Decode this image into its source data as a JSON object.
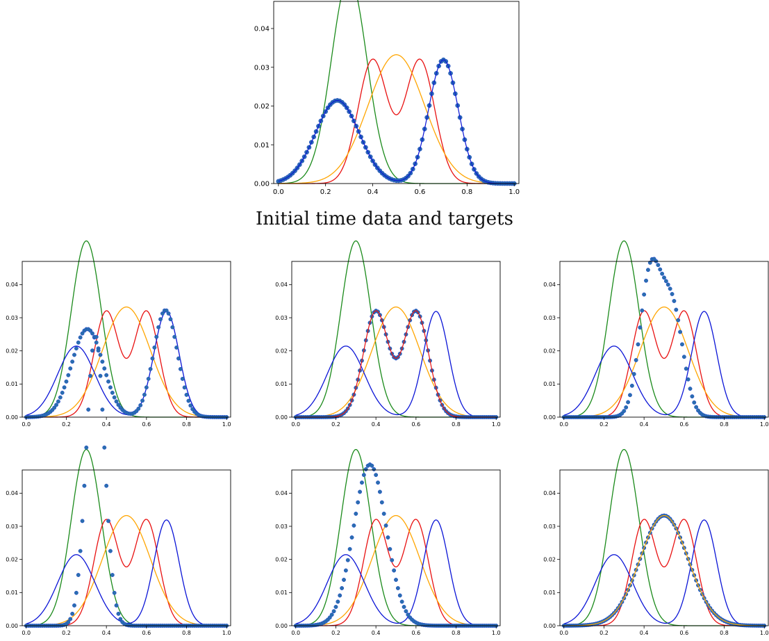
{
  "caption": "Initial time data and targets",
  "colors": {
    "green": "#1a8a1a",
    "red": "#e81010",
    "orange": "#ffa500",
    "blue": "#0a14d6",
    "dots": "#2a6fae",
    "dots_edge": "#1f3fd0"
  },
  "axes": {
    "xlim": [
      -0.02,
      1.02
    ],
    "ylim": [
      0,
      0.047
    ],
    "xticks": [
      "0.0",
      "0.2",
      "0.4",
      "0.6",
      "0.8",
      "1.0"
    ],
    "yticks": [
      "0.00",
      "0.01",
      "0.02",
      "0.03",
      "0.04"
    ]
  },
  "chart_data": [
    {
      "type": "line",
      "panel": "initial",
      "lines": [
        {
          "color": "green",
          "mixture": [
            {
              "w": 1.0,
              "mu": 0.3,
              "sigma": 0.075
            }
          ]
        },
        {
          "color": "red",
          "mixture": [
            {
              "w": 0.5,
              "mu": 0.4,
              "sigma": 0.0625
            },
            {
              "w": 0.5,
              "mu": 0.6,
              "sigma": 0.0625
            }
          ]
        },
        {
          "color": "orange",
          "mixture": [
            {
              "w": 1.0,
              "mu": 0.5,
              "sigma": 0.12
            }
          ]
        }
      ],
      "dots": {
        "mixture": [
          {
            "w": 0.5,
            "mu": 0.25,
            "sigma": 0.093
          },
          {
            "w": 0.5,
            "mu": 0.7,
            "sigma": 0.0625
          }
        ],
        "n": 101
      },
      "overlay": [
        {
          "color": "blue",
          "mixture": [
            {
              "w": 0.5,
              "mu": 0.25,
              "sigma": 0.093
            },
            {
              "w": 0.5,
              "mu": 0.7,
              "sigma": 0.0625
            }
          ]
        }
      ]
    },
    {
      "type": "line",
      "panel": "row1-left",
      "lines": [
        {
          "color": "green",
          "mixture": [
            {
              "w": 1.0,
              "mu": 0.3,
              "sigma": 0.075
            }
          ]
        },
        {
          "color": "red",
          "mixture": [
            {
              "w": 0.5,
              "mu": 0.4,
              "sigma": 0.0625
            },
            {
              "w": 0.5,
              "mu": 0.6,
              "sigma": 0.0625
            }
          ]
        },
        {
          "color": "orange",
          "mixture": [
            {
              "w": 1.0,
              "mu": 0.5,
              "sigma": 0.12
            }
          ]
        },
        {
          "color": "blue",
          "mixture": [
            {
              "w": 0.5,
              "mu": 0.25,
              "sigma": 0.093
            },
            {
              "w": 0.5,
              "mu": 0.7,
              "sigma": 0.0625
            }
          ]
        }
      ],
      "dots": {
        "mixture": [
          {
            "w": 0.52,
            "mu": 0.305,
            "sigma": 0.078
          },
          {
            "w": 0.48,
            "mu": 0.695,
            "sigma": 0.0593
          }
        ],
        "n": 101
      },
      "overlay": []
    },
    {
      "type": "line",
      "panel": "row1-middle",
      "lines": [
        {
          "color": "green",
          "mixture": [
            {
              "w": 1.0,
              "mu": 0.3,
              "sigma": 0.075
            }
          ]
        },
        {
          "color": "orange",
          "mixture": [
            {
              "w": 1.0,
              "mu": 0.5,
              "sigma": 0.12
            }
          ]
        },
        {
          "color": "blue",
          "mixture": [
            {
              "w": 0.5,
              "mu": 0.25,
              "sigma": 0.093
            },
            {
              "w": 0.5,
              "mu": 0.7,
              "sigma": 0.0625
            }
          ]
        }
      ],
      "dots": {
        "mixture": [
          {
            "w": 0.5,
            "mu": 0.4,
            "sigma": 0.0625
          },
          {
            "w": 0.5,
            "mu": 0.6,
            "sigma": 0.0625
          }
        ],
        "n": 101
      },
      "overlay": [
        {
          "color": "red",
          "mixture": [
            {
              "w": 0.5,
              "mu": 0.4,
              "sigma": 0.0625
            },
            {
              "w": 0.5,
              "mu": 0.6,
              "sigma": 0.0625
            }
          ]
        }
      ]
    },
    {
      "type": "line",
      "panel": "row1-right",
      "lines": [
        {
          "color": "green",
          "mixture": [
            {
              "w": 1.0,
              "mu": 0.3,
              "sigma": 0.075
            }
          ]
        },
        {
          "color": "red",
          "mixture": [
            {
              "w": 0.5,
              "mu": 0.4,
              "sigma": 0.0625
            },
            {
              "w": 0.5,
              "mu": 0.6,
              "sigma": 0.0625
            }
          ]
        },
        {
          "color": "orange",
          "mixture": [
            {
              "w": 1.0,
              "mu": 0.5,
              "sigma": 0.12
            }
          ]
        },
        {
          "color": "blue",
          "mixture": [
            {
              "w": 0.5,
              "mu": 0.25,
              "sigma": 0.093
            },
            {
              "w": 0.5,
              "mu": 0.7,
              "sigma": 0.0625
            }
          ]
        }
      ],
      "dots": {
        "mixture": [
          {
            "w": 0.55,
            "mu": 0.43,
            "sigma": 0.052
          },
          {
            "w": 0.45,
            "mu": 0.54,
            "sigma": 0.055
          }
        ],
        "n": 101
      },
      "overlay": []
    },
    {
      "type": "line",
      "panel": "row2-left",
      "lines": [
        {
          "color": "green",
          "mixture": [
            {
              "w": 1.0,
              "mu": 0.3,
              "sigma": 0.075
            }
          ]
        },
        {
          "color": "red",
          "mixture": [
            {
              "w": 0.5,
              "mu": 0.4,
              "sigma": 0.0625
            },
            {
              "w": 0.5,
              "mu": 0.6,
              "sigma": 0.0625
            }
          ]
        },
        {
          "color": "orange",
          "mixture": [
            {
              "w": 1.0,
              "mu": 0.5,
              "sigma": 0.12
            }
          ]
        },
        {
          "color": "blue",
          "mixture": [
            {
              "w": 0.5,
              "mu": 0.25,
              "sigma": 0.093
            },
            {
              "w": 0.5,
              "mu": 0.7,
              "sigma": 0.0625
            }
          ]
        }
      ],
      "dots": {
        "mixture": [
          {
            "w": 1.0,
            "mu": 0.345,
            "sigma": 0.0455
          }
        ],
        "n": 101
      },
      "overlay": []
    },
    {
      "type": "line",
      "panel": "row2-middle",
      "lines": [
        {
          "color": "green",
          "mixture": [
            {
              "w": 1.0,
              "mu": 0.3,
              "sigma": 0.075
            }
          ]
        },
        {
          "color": "red",
          "mixture": [
            {
              "w": 0.5,
              "mu": 0.4,
              "sigma": 0.0625
            },
            {
              "w": 0.5,
              "mu": 0.6,
              "sigma": 0.0625
            }
          ]
        },
        {
          "color": "orange",
          "mixture": [
            {
              "w": 1.0,
              "mu": 0.5,
              "sigma": 0.12
            }
          ]
        },
        {
          "color": "blue",
          "mixture": [
            {
              "w": 0.5,
              "mu": 0.25,
              "sigma": 0.093
            },
            {
              "w": 0.5,
              "mu": 0.7,
              "sigma": 0.0625
            }
          ]
        }
      ],
      "dots": {
        "mixture": [
          {
            "w": 1.0,
            "mu": 0.37,
            "sigma": 0.082
          }
        ],
        "n": 101
      },
      "overlay": []
    },
    {
      "type": "line",
      "panel": "row2-right",
      "lines": [
        {
          "color": "green",
          "mixture": [
            {
              "w": 1.0,
              "mu": 0.3,
              "sigma": 0.075
            }
          ]
        },
        {
          "color": "red",
          "mixture": [
            {
              "w": 0.5,
              "mu": 0.4,
              "sigma": 0.0625
            },
            {
              "w": 0.5,
              "mu": 0.6,
              "sigma": 0.0625
            }
          ]
        },
        {
          "color": "blue",
          "mixture": [
            {
              "w": 0.5,
              "mu": 0.25,
              "sigma": 0.093
            },
            {
              "w": 0.5,
              "mu": 0.7,
              "sigma": 0.0625
            }
          ]
        }
      ],
      "dots": {
        "mixture": [
          {
            "w": 1.0,
            "mu": 0.5,
            "sigma": 0.12
          }
        ],
        "n": 101
      },
      "overlay": [
        {
          "color": "orange",
          "mixture": [
            {
              "w": 1.0,
              "mu": 0.5,
              "sigma": 0.12
            }
          ]
        }
      ]
    }
  ]
}
